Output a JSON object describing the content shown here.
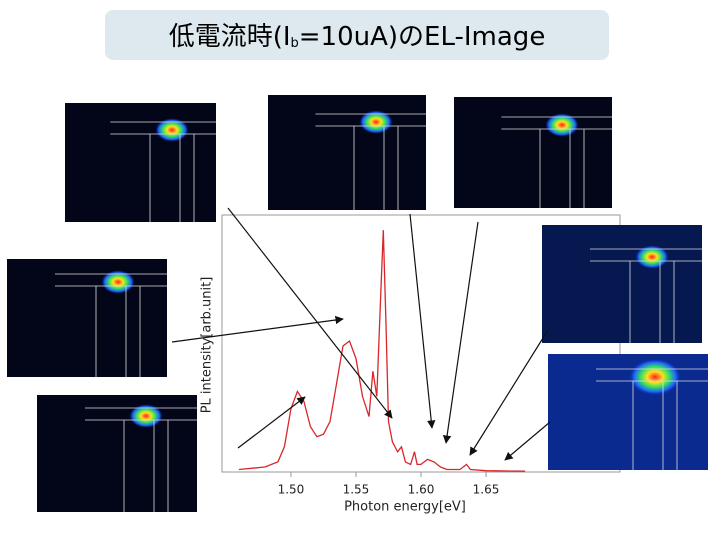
{
  "chart_data": {
    "type": "line",
    "title_parts": [
      "低電流時(I",
      "b",
      "=10uA)のEL-Image"
    ],
    "x_label": "Photon energy[eV]",
    "y_label": "PL intensity[arb.unit]",
    "color": "#d9262a",
    "xlim": [
      1.447,
      1.753
    ],
    "ylim": [
      0,
      100
    ],
    "xticks": [
      {
        "value": 1.5,
        "label": "1.50"
      },
      {
        "value": 1.55,
        "label": "1.55"
      },
      {
        "value": 1.6,
        "label": "1.60"
      },
      {
        "value": 1.65,
        "label": "1.65"
      }
    ],
    "x": [
      1.46,
      1.48,
      1.49,
      1.495,
      1.5,
      1.505,
      1.51,
      1.515,
      1.52,
      1.525,
      1.53,
      1.535,
      1.54,
      1.545,
      1.55,
      1.555,
      1.56,
      1.563,
      1.566,
      1.569,
      1.571,
      1.573,
      1.575,
      1.578,
      1.582,
      1.585,
      1.588,
      1.592,
      1.595,
      1.597,
      1.6,
      1.605,
      1.61,
      1.615,
      1.62,
      1.63,
      1.635,
      1.638,
      1.65,
      1.68
    ],
    "values": [
      1,
      2,
      4,
      10,
      25,
      32,
      28,
      18,
      14,
      15,
      20,
      35,
      50,
      52,
      45,
      30,
      22,
      40,
      30,
      70,
      96,
      60,
      20,
      12,
      8,
      10,
      4,
      3,
      8,
      3,
      3,
      5,
      4,
      2,
      1,
      1,
      3,
      1,
      0.5,
      0.3
    ]
  }
}
